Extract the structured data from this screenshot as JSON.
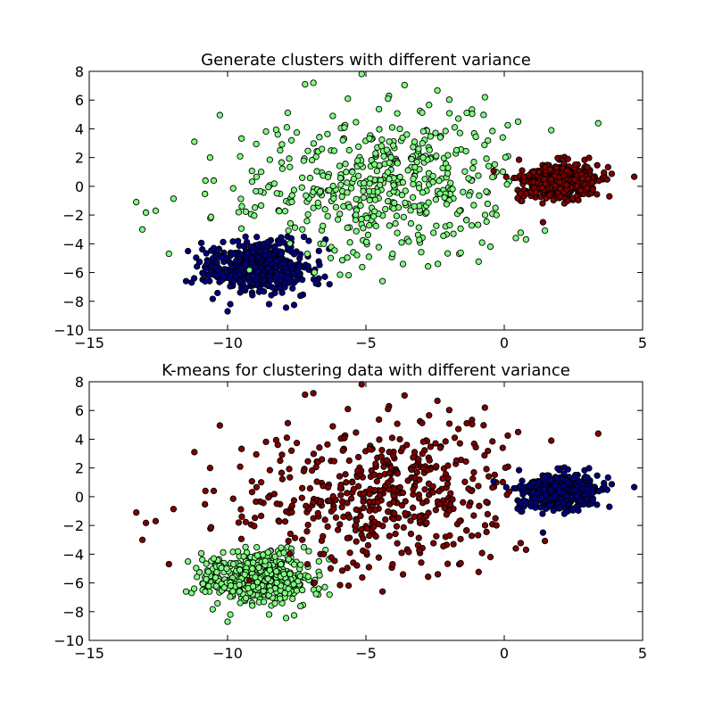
{
  "charts": [
    {
      "id": "top",
      "chart_data": {
        "type": "scatter",
        "title": "Generate clusters with different variance",
        "xlabel": "",
        "ylabel": "",
        "xlim": [
          -15,
          5
        ],
        "ylim": [
          -10,
          8
        ],
        "xticks": [
          -15,
          -10,
          -5,
          0,
          5
        ],
        "yticks": [
          -10,
          -8,
          -6,
          -4,
          -2,
          0,
          2,
          4,
          6,
          8
        ],
        "xtick_labels": [
          "−15",
          "−10",
          "−5",
          "0",
          "5"
        ],
        "ytick_labels": [
          "−10",
          "−8",
          "−6",
          "−4",
          "−2",
          "0",
          "2",
          "4",
          "6",
          "8"
        ],
        "grid": false,
        "legend": "none",
        "series": [
          {
            "cluster": 0,
            "color": "#00007f",
            "center": [
              -9.0,
              -5.6
            ],
            "std": [
              1.0,
              0.9
            ],
            "n": 500,
            "approx_points": [
              [
                -9.0,
                -5.6
              ],
              [
                -10.5,
                -4.3
              ],
              [
                -11.5,
                -6.6
              ],
              [
                -10.0,
                -8.7
              ],
              [
                -8.5,
                -8.2
              ],
              [
                -7.3,
                -6.5
              ],
              [
                -6.7,
                -4.5
              ],
              [
                -7.7,
                -3.9
              ]
            ]
          },
          {
            "cluster": 1,
            "color": "#7fff7f",
            "center": [
              -4.5,
              0.0
            ],
            "std": [
              2.5,
              2.5
            ],
            "n": 500,
            "approx_points": [
              [
                -13.3,
                -1.1
              ],
              [
                -12.6,
                -1.7
              ],
              [
                -11.2,
                3.1
              ],
              [
                -10.8,
                0.4
              ],
              [
                -10.5,
                0.4
              ],
              [
                -9.6,
                -1.8
              ],
              [
                -7.2,
                7.1
              ],
              [
                -6.9,
                7.2
              ],
              [
                -4.2,
                6.1
              ],
              [
                -0.7,
                6.2
              ],
              [
                1.7,
                3.9
              ],
              [
                0.5,
                4.5
              ],
              [
                -4.4,
                -6.6
              ],
              [
                -2.4,
                -5.4
              ],
              [
                -0.5,
                -4.2
              ]
            ]
          },
          {
            "cluster": 2,
            "color": "#7f0000",
            "center": [
              2.0,
              0.3
            ],
            "std": [
              0.7,
              0.6
            ],
            "n": 500,
            "approx_points": [
              [
                2.0,
                0.3
              ],
              [
                3.8,
                -0.7
              ],
              [
                1.4,
                -2.5
              ],
              [
                0.8,
                -0.5
              ],
              [
                2.3,
                1.9
              ]
            ]
          }
        ]
      }
    },
    {
      "id": "bottom",
      "chart_data": {
        "type": "scatter",
        "title": "K-means for clustering data with different variance",
        "xlabel": "",
        "ylabel": "",
        "xlim": [
          -15,
          5
        ],
        "ylim": [
          -10,
          8
        ],
        "xticks": [
          -15,
          -10,
          -5,
          0,
          5
        ],
        "yticks": [
          -10,
          -8,
          -6,
          -4,
          -2,
          0,
          2,
          4,
          6,
          8
        ],
        "xtick_labels": [
          "−15",
          "−10",
          "−5",
          "0",
          "5"
        ],
        "ytick_labels": [
          "−10",
          "−8",
          "−6",
          "−4",
          "−2",
          "0",
          "2",
          "4",
          "6",
          "8"
        ],
        "grid": false,
        "legend": "none",
        "series": [
          {
            "cluster": 0,
            "color": "#7fff7f",
            "center": [
              -9.0,
              -5.6
            ],
            "std": [
              1.0,
              0.9
            ],
            "n": 500,
            "approx_points": [
              [
                -9.0,
                -5.6
              ],
              [
                -13.3,
                -1.1
              ],
              [
                -12.6,
                -1.7
              ],
              [
                -11.5,
                -6.6
              ],
              [
                -10.0,
                -8.7
              ],
              [
                -10.5,
                -4.3
              ]
            ]
          },
          {
            "cluster": 1,
            "color": "#7f0000",
            "center": [
              -4.5,
              0.0
            ],
            "std": [
              2.5,
              2.5
            ],
            "n": 500,
            "approx_points": [
              [
                -11.2,
                3.1
              ],
              [
                -10.8,
                0.4
              ],
              [
                -7.2,
                7.1
              ],
              [
                -6.9,
                7.2
              ],
              [
                -4.2,
                6.1
              ],
              [
                -4.4,
                -6.6
              ],
              [
                -2.4,
                -5.4
              ]
            ]
          },
          {
            "cluster": 2,
            "color": "#00007f",
            "center": [
              2.0,
              0.3
            ],
            "std": [
              0.7,
              0.6
            ],
            "n": 500,
            "approx_points": [
              [
                2.0,
                0.3
              ],
              [
                3.8,
                -0.7
              ],
              [
                1.7,
                3.9
              ],
              [
                0.5,
                4.5
              ],
              [
                -0.7,
                6.2
              ],
              [
                -1.5,
                5.9
              ],
              [
                -0.5,
                -4.2
              ]
            ]
          }
        ]
      }
    }
  ]
}
